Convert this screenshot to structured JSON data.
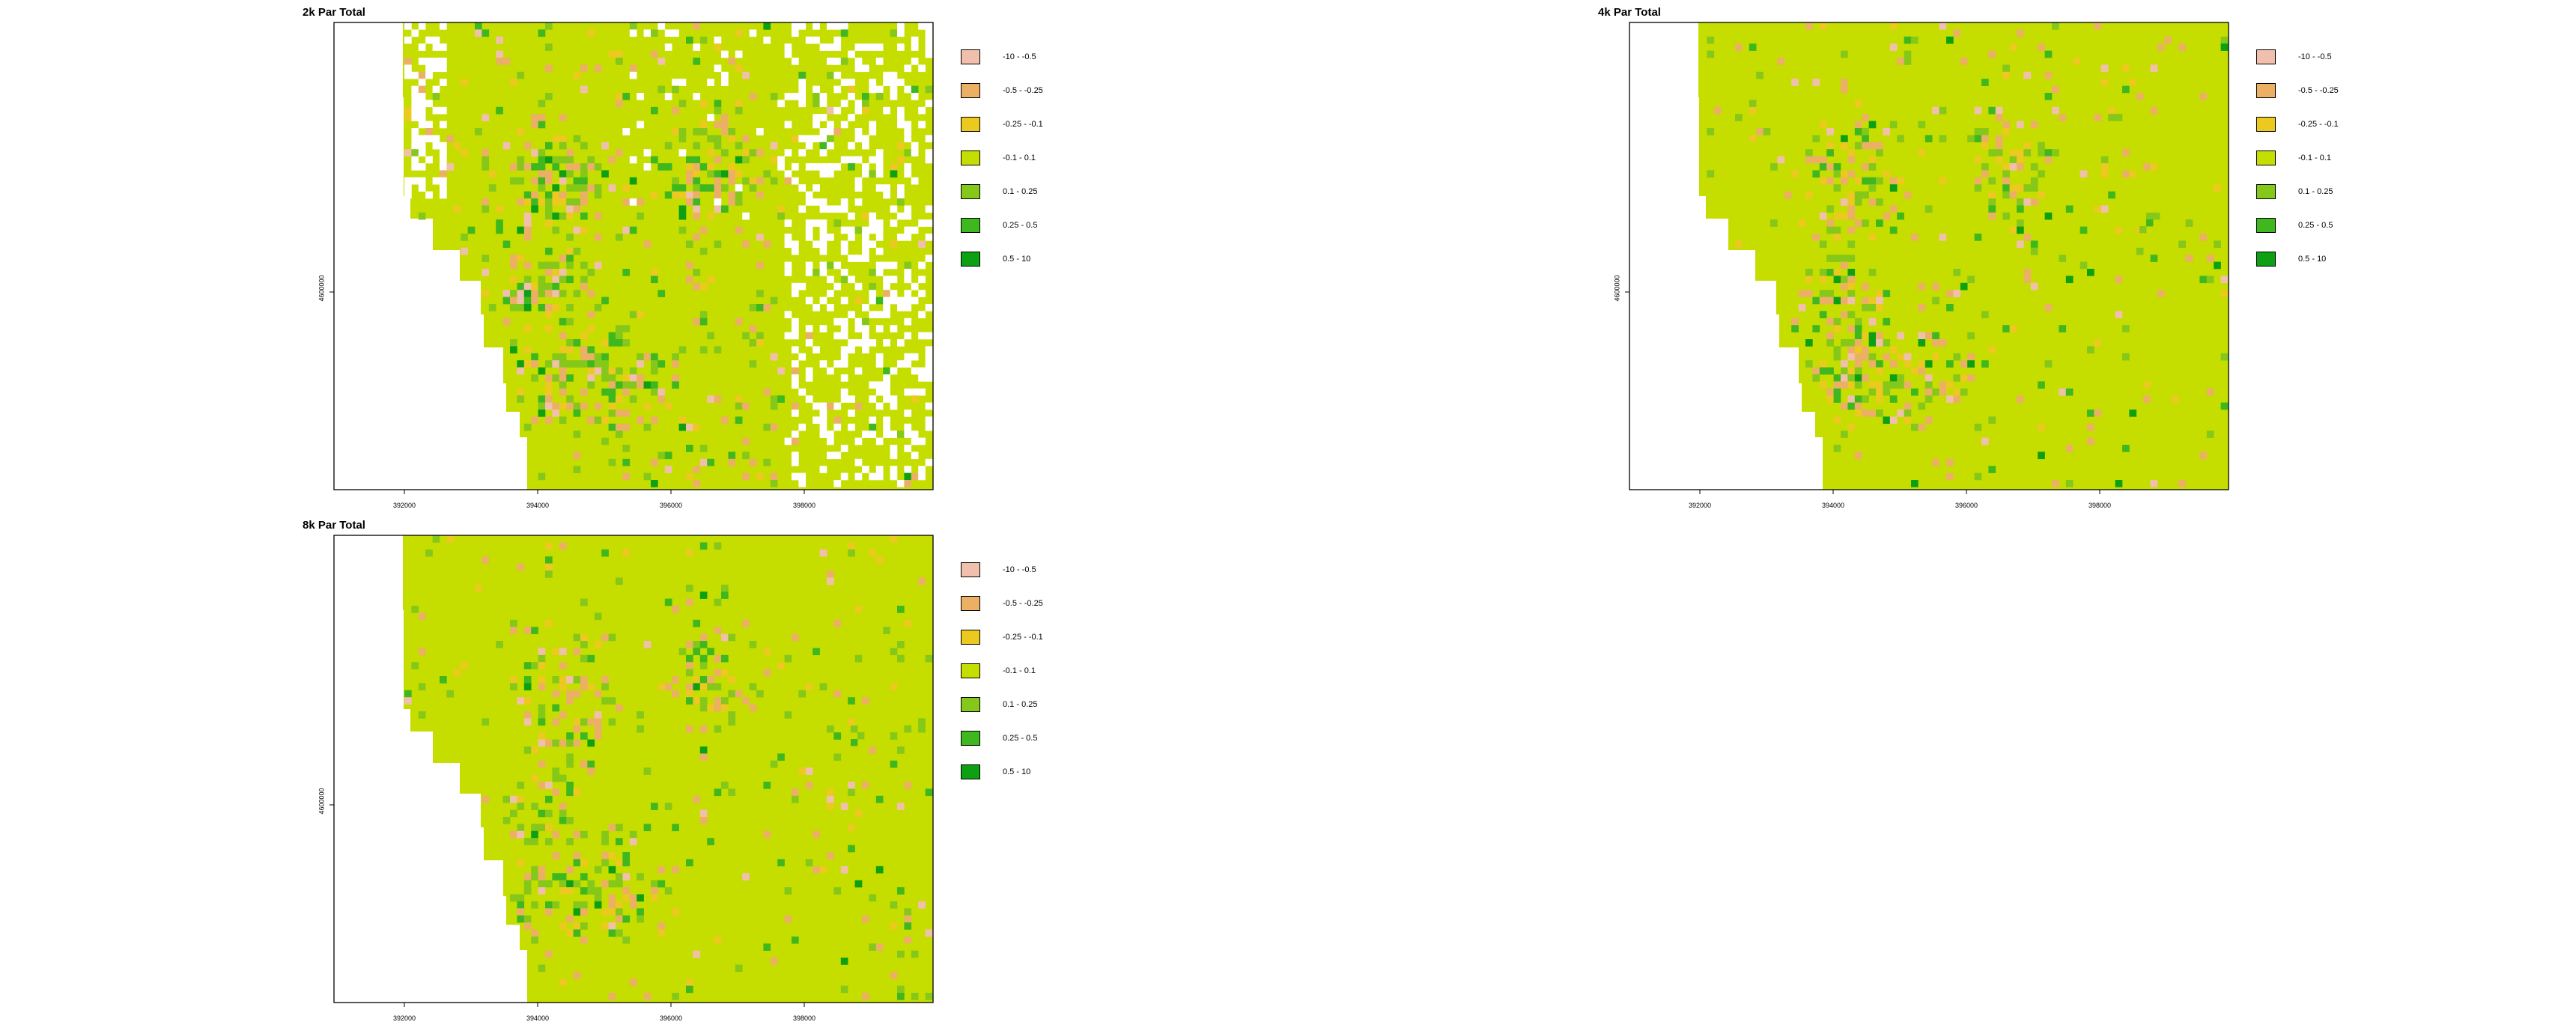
{
  "classes": [
    {
      "label": "-10 - -0.5",
      "color": "#f1c0ad"
    },
    {
      "label": "-0.5 - -0.25",
      "color": "#ecb064"
    },
    {
      "label": "-0.25 - -0.1",
      "color": "#ebc91e"
    },
    {
      "label": "-0.1 - 0.1",
      "color": "#c5de00"
    },
    {
      "label": "0.1 - 0.25",
      "color": "#85c81a"
    },
    {
      "label": "0.25 - 0.5",
      "color": "#3fb81f"
    },
    {
      "label": "0.5 - 10",
      "color": "#0da012"
    }
  ],
  "x_ticks": [
    "392000",
    "394000",
    "396000",
    "398000"
  ],
  "y_label": "4600000",
  "panels": [
    {
      "title": "2k Par Total",
      "key": "p2k"
    },
    {
      "title": "4k Par Total",
      "key": "p4k"
    },
    {
      "title": "8k Par Total",
      "key": "p8k"
    }
  ],
  "chart_data": [
    {
      "type": "heatmap",
      "title": "2k Par Total",
      "x_ticks": [
        "392000",
        "394000",
        "396000",
        "398000"
      ],
      "y_label": "4600000",
      "classes": [
        "-10 - -0.5",
        "-0.5 - -0.25",
        "-0.25 - -0.1",
        "-0.1 - 0.1",
        "0.1 - 0.25",
        "0.25 - 0.5",
        "0.5 - 10"
      ],
      "dominant_class": "-0.1 - 0.1",
      "no_data_regions": "west edge (stepped coastline), scattered speckle north-west and east"
    },
    {
      "type": "heatmap",
      "title": "4k Par Total",
      "x_ticks": [
        "392000",
        "394000",
        "396000",
        "398000"
      ],
      "y_label": "4600000",
      "classes": [
        "-10 - -0.5",
        "-0.5 - -0.25",
        "-0.25 - -0.1",
        "-0.1 - 0.1",
        "0.1 - 0.25",
        "0.25 - 0.5",
        "0.5 - 10"
      ],
      "dominant_class": "-0.1 - 0.1",
      "no_data_regions": "west edge (stepped coastline)"
    },
    {
      "type": "heatmap",
      "title": "8k Par Total",
      "x_ticks": [
        "392000",
        "394000",
        "396000",
        "398000"
      ],
      "y_label": "4600000",
      "classes": [
        "-10 - -0.5",
        "-0.5 - -0.25",
        "-0.25 - -0.1",
        "-0.1 - 0.1",
        "0.1 - 0.25",
        "0.25 - 0.5",
        "0.5 - 10"
      ],
      "dominant_class": "-0.1 - 0.1",
      "no_data_regions": "west edge (stepped coastline)"
    }
  ]
}
